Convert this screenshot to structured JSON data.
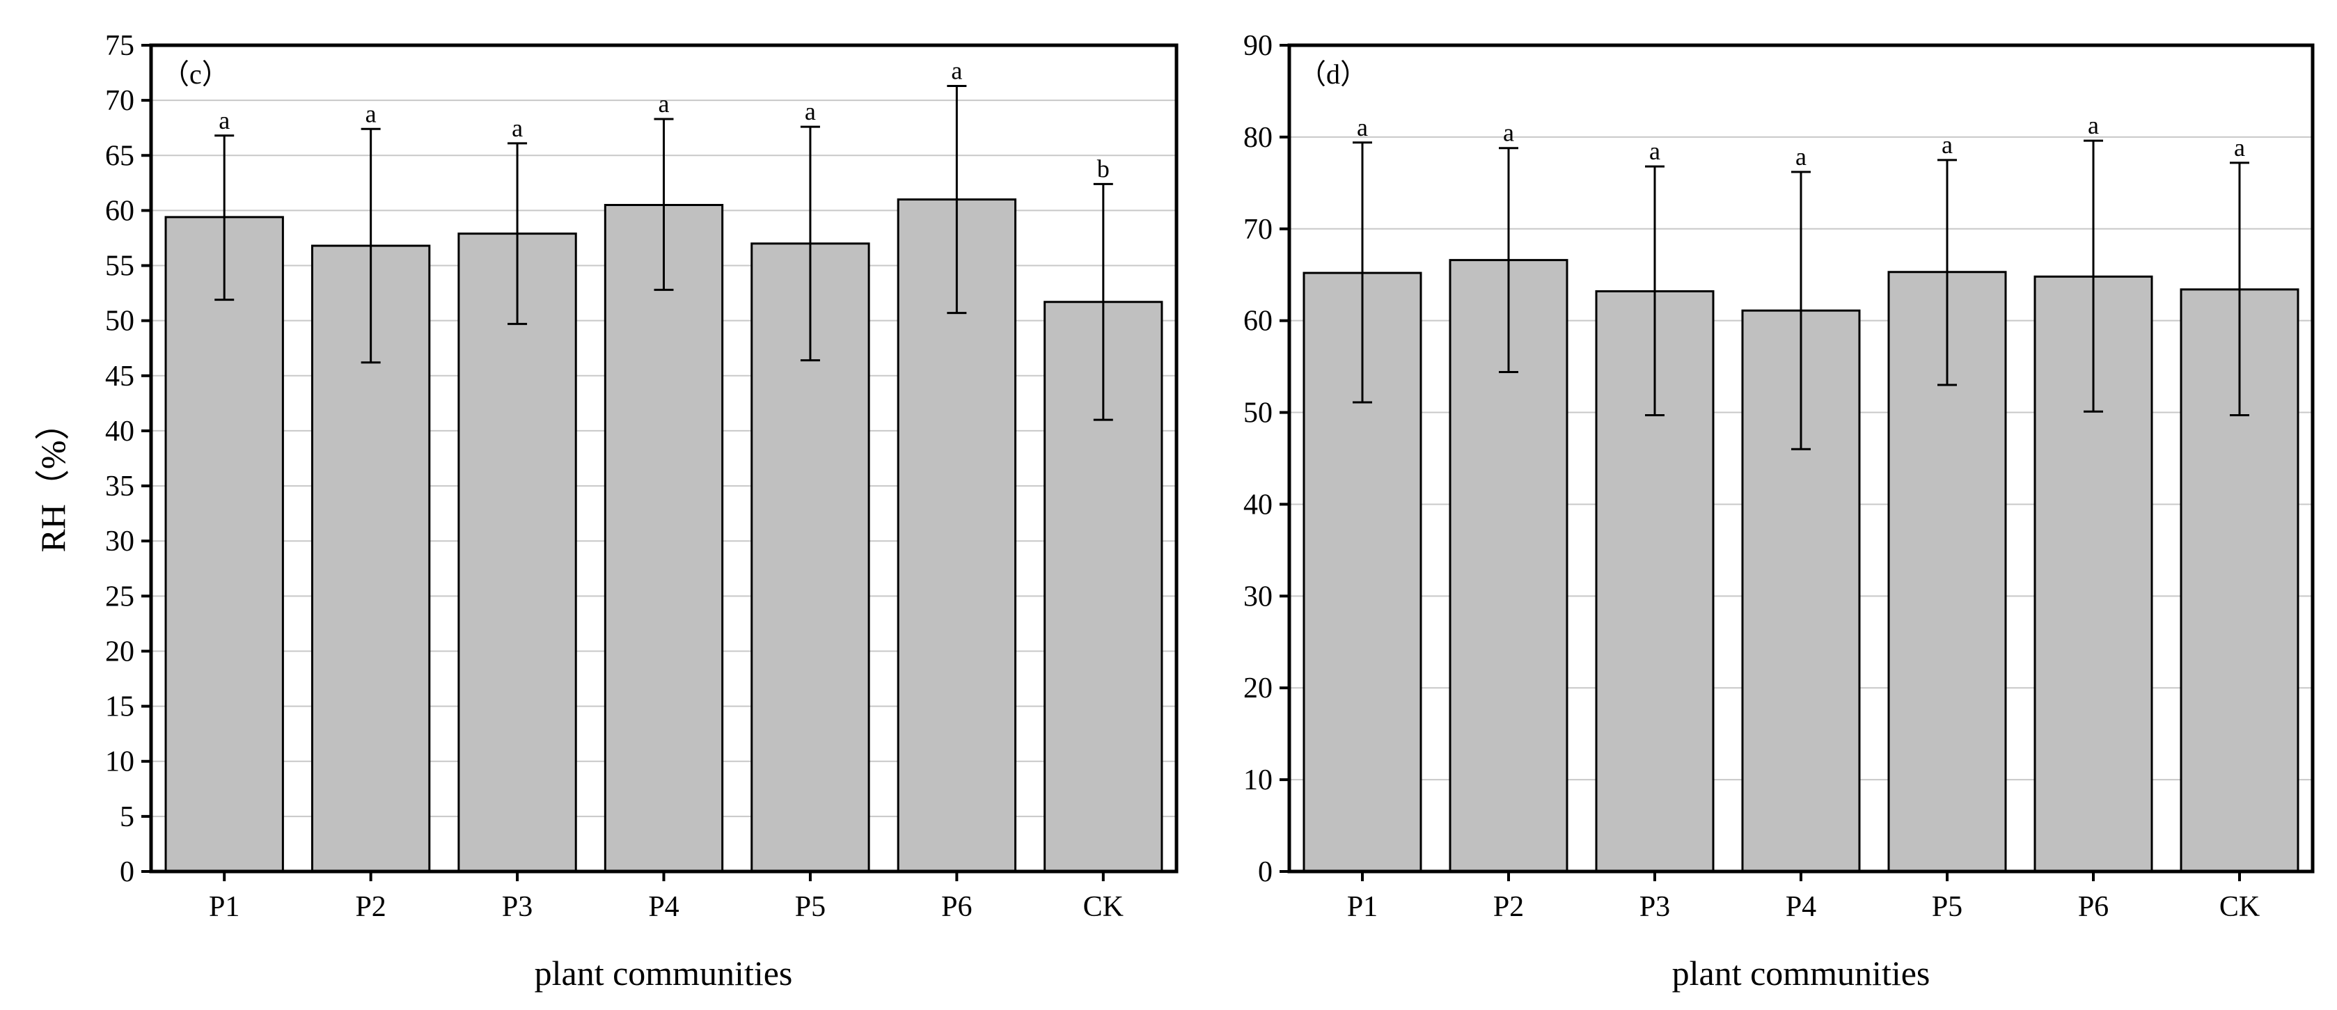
{
  "chart_data": [
    {
      "type": "bar",
      "panel_label": "（c）",
      "categories": [
        "P1",
        "P2",
        "P3",
        "P4",
        "P5",
        "P6",
        "CK"
      ],
      "values": [
        59.4,
        56.8,
        57.9,
        60.5,
        57.0,
        61.0,
        51.7
      ],
      "error_upper": [
        66.8,
        67.4,
        66.1,
        68.3,
        67.6,
        71.3,
        62.4
      ],
      "error_lower": [
        51.9,
        46.2,
        49.7,
        52.8,
        46.4,
        50.7,
        41.0
      ],
      "significance_letters": [
        "a",
        "a",
        "a",
        "a",
        "a",
        "a",
        "b"
      ],
      "xlabel": "plant communities",
      "ylabel": "RH（%）",
      "ylim": [
        0,
        75
      ],
      "yticks": [
        0,
        5,
        10,
        15,
        20,
        25,
        30,
        35,
        40,
        45,
        50,
        55,
        60,
        65,
        70,
        75
      ],
      "grid": true,
      "bar_color": "#c0c0c0"
    },
    {
      "type": "bar",
      "panel_label": "（d）",
      "categories": [
        "P1",
        "P2",
        "P3",
        "P4",
        "P5",
        "P6",
        "CK"
      ],
      "values": [
        65.2,
        66.6,
        63.2,
        61.1,
        65.3,
        64.8,
        63.4
      ],
      "error_upper": [
        79.4,
        78.8,
        76.8,
        76.2,
        77.5,
        79.6,
        77.2
      ],
      "error_lower": [
        51.1,
        54.4,
        49.7,
        46.0,
        53.0,
        50.1,
        49.7
      ],
      "significance_letters": [
        "a",
        "a",
        "a",
        "a",
        "a",
        "a",
        "a"
      ],
      "xlabel": "plant communities",
      "ylabel": "",
      "ylim": [
        0,
        90
      ],
      "yticks": [
        0,
        10,
        20,
        30,
        40,
        50,
        60,
        70,
        80,
        90
      ],
      "grid": true,
      "bar_color": "#c0c0c0"
    }
  ]
}
